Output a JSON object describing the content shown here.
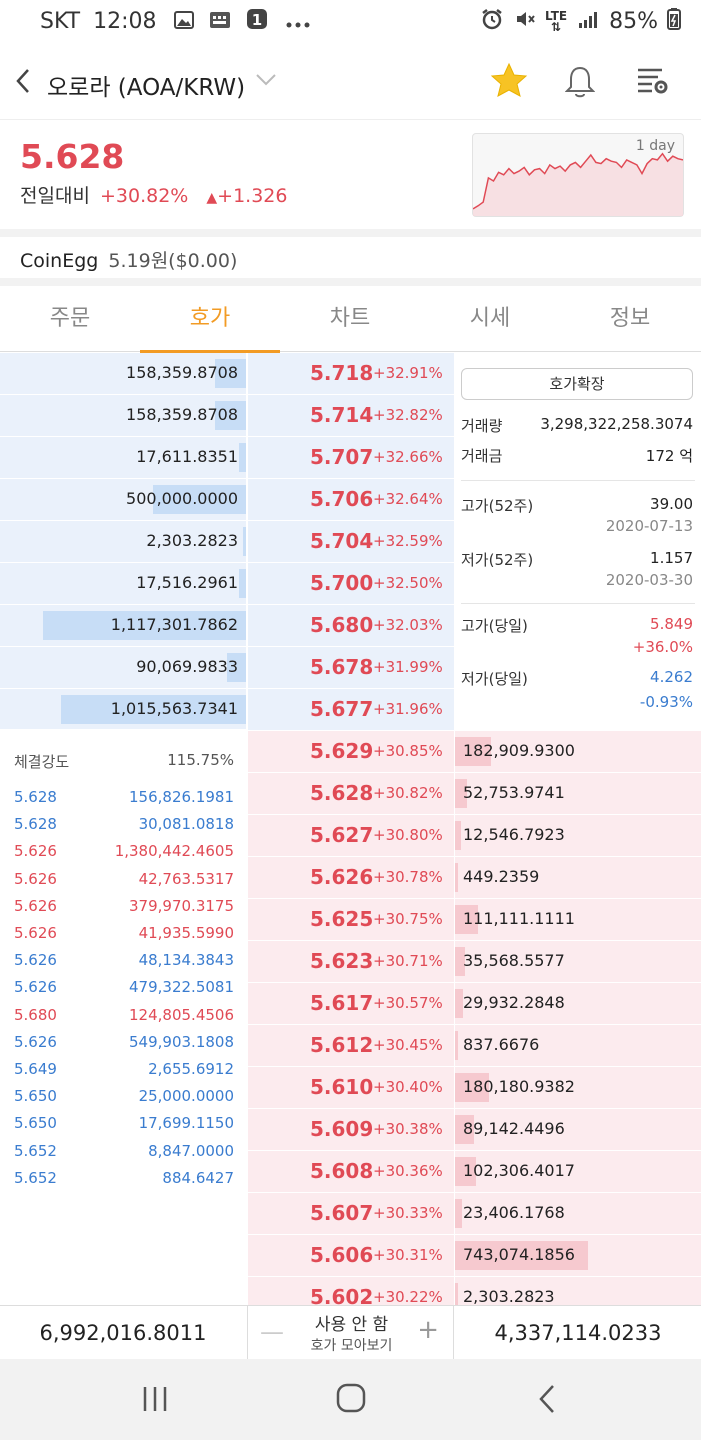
{
  "status_bar": {
    "carrier": "SKT",
    "time": "12:08",
    "network": "LTE",
    "battery": "85%"
  },
  "header": {
    "title": "오로라 (AOA/KRW)"
  },
  "price": {
    "current": "5.628",
    "change_label": "전일대비",
    "change_pct": "+30.82%",
    "change_abs": "+1.326"
  },
  "spark": {
    "label": "1 day",
    "points": [
      0.05,
      0.1,
      0.16,
      0.55,
      0.5,
      0.64,
      0.6,
      0.7,
      0.62,
      0.66,
      0.72,
      0.6,
      0.68,
      0.7,
      0.62,
      0.76,
      0.7,
      0.74,
      0.66,
      0.76,
      0.8,
      0.72,
      0.82,
      0.92,
      0.8,
      0.78,
      0.86,
      0.82,
      0.8,
      0.72,
      0.84,
      0.8,
      0.76,
      0.62,
      0.78,
      0.86,
      0.84,
      0.94,
      0.82,
      0.9,
      0.86,
      0.84
    ]
  },
  "exchange": {
    "name": "CoinEgg",
    "value": "5.19원($0.00)"
  },
  "tabs": [
    "주문",
    "호가",
    "차트",
    "시세",
    "정보"
  ],
  "asks": [
    {
      "qty": "158,359.8708",
      "price": "5.718",
      "pct": "+32.91%",
      "depth": 0.14
    },
    {
      "qty": "158,359.8708",
      "price": "5.714",
      "pct": "+32.82%",
      "depth": 0.14
    },
    {
      "qty": "17,611.8351",
      "price": "5.707",
      "pct": "+32.66%",
      "depth": 0.02
    },
    {
      "qty": "500,000.0000",
      "price": "5.706",
      "pct": "+32.64%",
      "depth": 0.45
    },
    {
      "qty": "2,303.2823",
      "price": "5.704",
      "pct": "+32.59%",
      "depth": 0.0
    },
    {
      "qty": "17,516.2961",
      "price": "5.700",
      "pct": "+32.50%",
      "depth": 0.02
    },
    {
      "qty": "1,117,301.7862",
      "price": "5.680",
      "pct": "+32.03%",
      "depth": 1.0
    },
    {
      "qty": "90,069.9833",
      "price": "5.678",
      "pct": "+31.99%",
      "depth": 0.08
    },
    {
      "qty": "1,015,563.7341",
      "price": "5.677",
      "pct": "+31.96%",
      "depth": 0.91
    }
  ],
  "bids": [
    {
      "price": "5.629",
      "pct": "+30.85%",
      "qty": "182,909.9300",
      "depth": 0.25
    },
    {
      "price": "5.628",
      "pct": "+30.82%",
      "qty": "52,753.9741",
      "depth": 0.07
    },
    {
      "price": "5.627",
      "pct": "+30.80%",
      "qty": "12,546.7923",
      "depth": 0.02
    },
    {
      "price": "5.626",
      "pct": "+30.78%",
      "qty": "449.2359",
      "depth": 0.0
    },
    {
      "price": "5.625",
      "pct": "+30.75%",
      "qty": "111,111.1111",
      "depth": 0.15
    },
    {
      "price": "5.623",
      "pct": "+30.71%",
      "qty": "35,568.5577",
      "depth": 0.05
    },
    {
      "price": "5.617",
      "pct": "+30.57%",
      "qty": "29,932.2848",
      "depth": 0.04
    },
    {
      "price": "5.612",
      "pct": "+30.45%",
      "qty": "837.6676",
      "depth": 0.0
    },
    {
      "price": "5.610",
      "pct": "+30.40%",
      "qty": "180,180.9382",
      "depth": 0.24
    },
    {
      "price": "5.609",
      "pct": "+30.38%",
      "qty": "89,142.4496",
      "depth": 0.12
    },
    {
      "price": "5.608",
      "pct": "+30.36%",
      "qty": "102,306.4017",
      "depth": 0.14
    },
    {
      "price": "5.607",
      "pct": "+30.33%",
      "qty": "23,406.1768",
      "depth": 0.03
    },
    {
      "price": "5.606",
      "pct": "+30.31%",
      "qty": "743,074.1856",
      "depth": 1.0
    },
    {
      "price": "5.602",
      "pct": "+30.22%",
      "qty": "2,303.2823",
      "depth": 0.0
    }
  ],
  "info": {
    "expand_button": "호가확장",
    "volume_label": "거래량",
    "volume": "3,298,322,258.3074",
    "amount_label": "거래금",
    "amount": "172 억",
    "high52_label": "고가(52주)",
    "high52": "39.00",
    "high52_date": "2020-07-13",
    "low52_label": "저가(52주)",
    "low52": "1.157",
    "low52_date": "2020-03-30",
    "high_day_label": "고가(당일)",
    "high_day": "5.849",
    "high_day_pct": "+36.0%",
    "low_day_label": "저가(당일)",
    "low_day": "4.262",
    "low_day_pct": "-0.93%"
  },
  "trades": {
    "strength_label": "체결강도",
    "strength": "115.75%",
    "rows": [
      {
        "price": "5.628",
        "qty": "156,826.1981",
        "side": "sell"
      },
      {
        "price": "5.628",
        "qty": "30,081.0818",
        "side": "sell"
      },
      {
        "price": "5.626",
        "qty": "1,380,442.4605",
        "side": "buy"
      },
      {
        "price": "5.626",
        "qty": "42,763.5317",
        "side": "buy"
      },
      {
        "price": "5.626",
        "qty": "379,970.3175",
        "side": "buy"
      },
      {
        "price": "5.626",
        "qty": "41,935.5990",
        "side": "buy"
      },
      {
        "price": "5.626",
        "qty": "48,134.3843",
        "side": "sell"
      },
      {
        "price": "5.626",
        "qty": "479,322.5081",
        "side": "sell"
      },
      {
        "price": "5.680",
        "qty": "124,805.4506",
        "side": "buy"
      },
      {
        "price": "5.626",
        "qty": "549,903.1808",
        "side": "sell"
      },
      {
        "price": "5.649",
        "qty": "2,655.6912",
        "side": "sell"
      },
      {
        "price": "5.650",
        "qty": "25,000.0000",
        "side": "sell"
      },
      {
        "price": "5.650",
        "qty": "17,699.1150",
        "side": "sell"
      },
      {
        "price": "5.652",
        "qty": "8,847.0000",
        "side": "sell"
      },
      {
        "price": "5.652",
        "qty": "884.6427",
        "side": "sell"
      }
    ]
  },
  "summary": {
    "ask_total": "6,992,016.8011",
    "bid_total": "4,337,114.0233",
    "mode_label": "사용 안 함",
    "mode_sub": "호가 모아보기"
  },
  "colors": {
    "up": "#e04a55",
    "down": "#3a7ccf",
    "accent": "#f29b24",
    "ask_bg": "#eaf1fb",
    "bid_bg": "#fcebee"
  }
}
